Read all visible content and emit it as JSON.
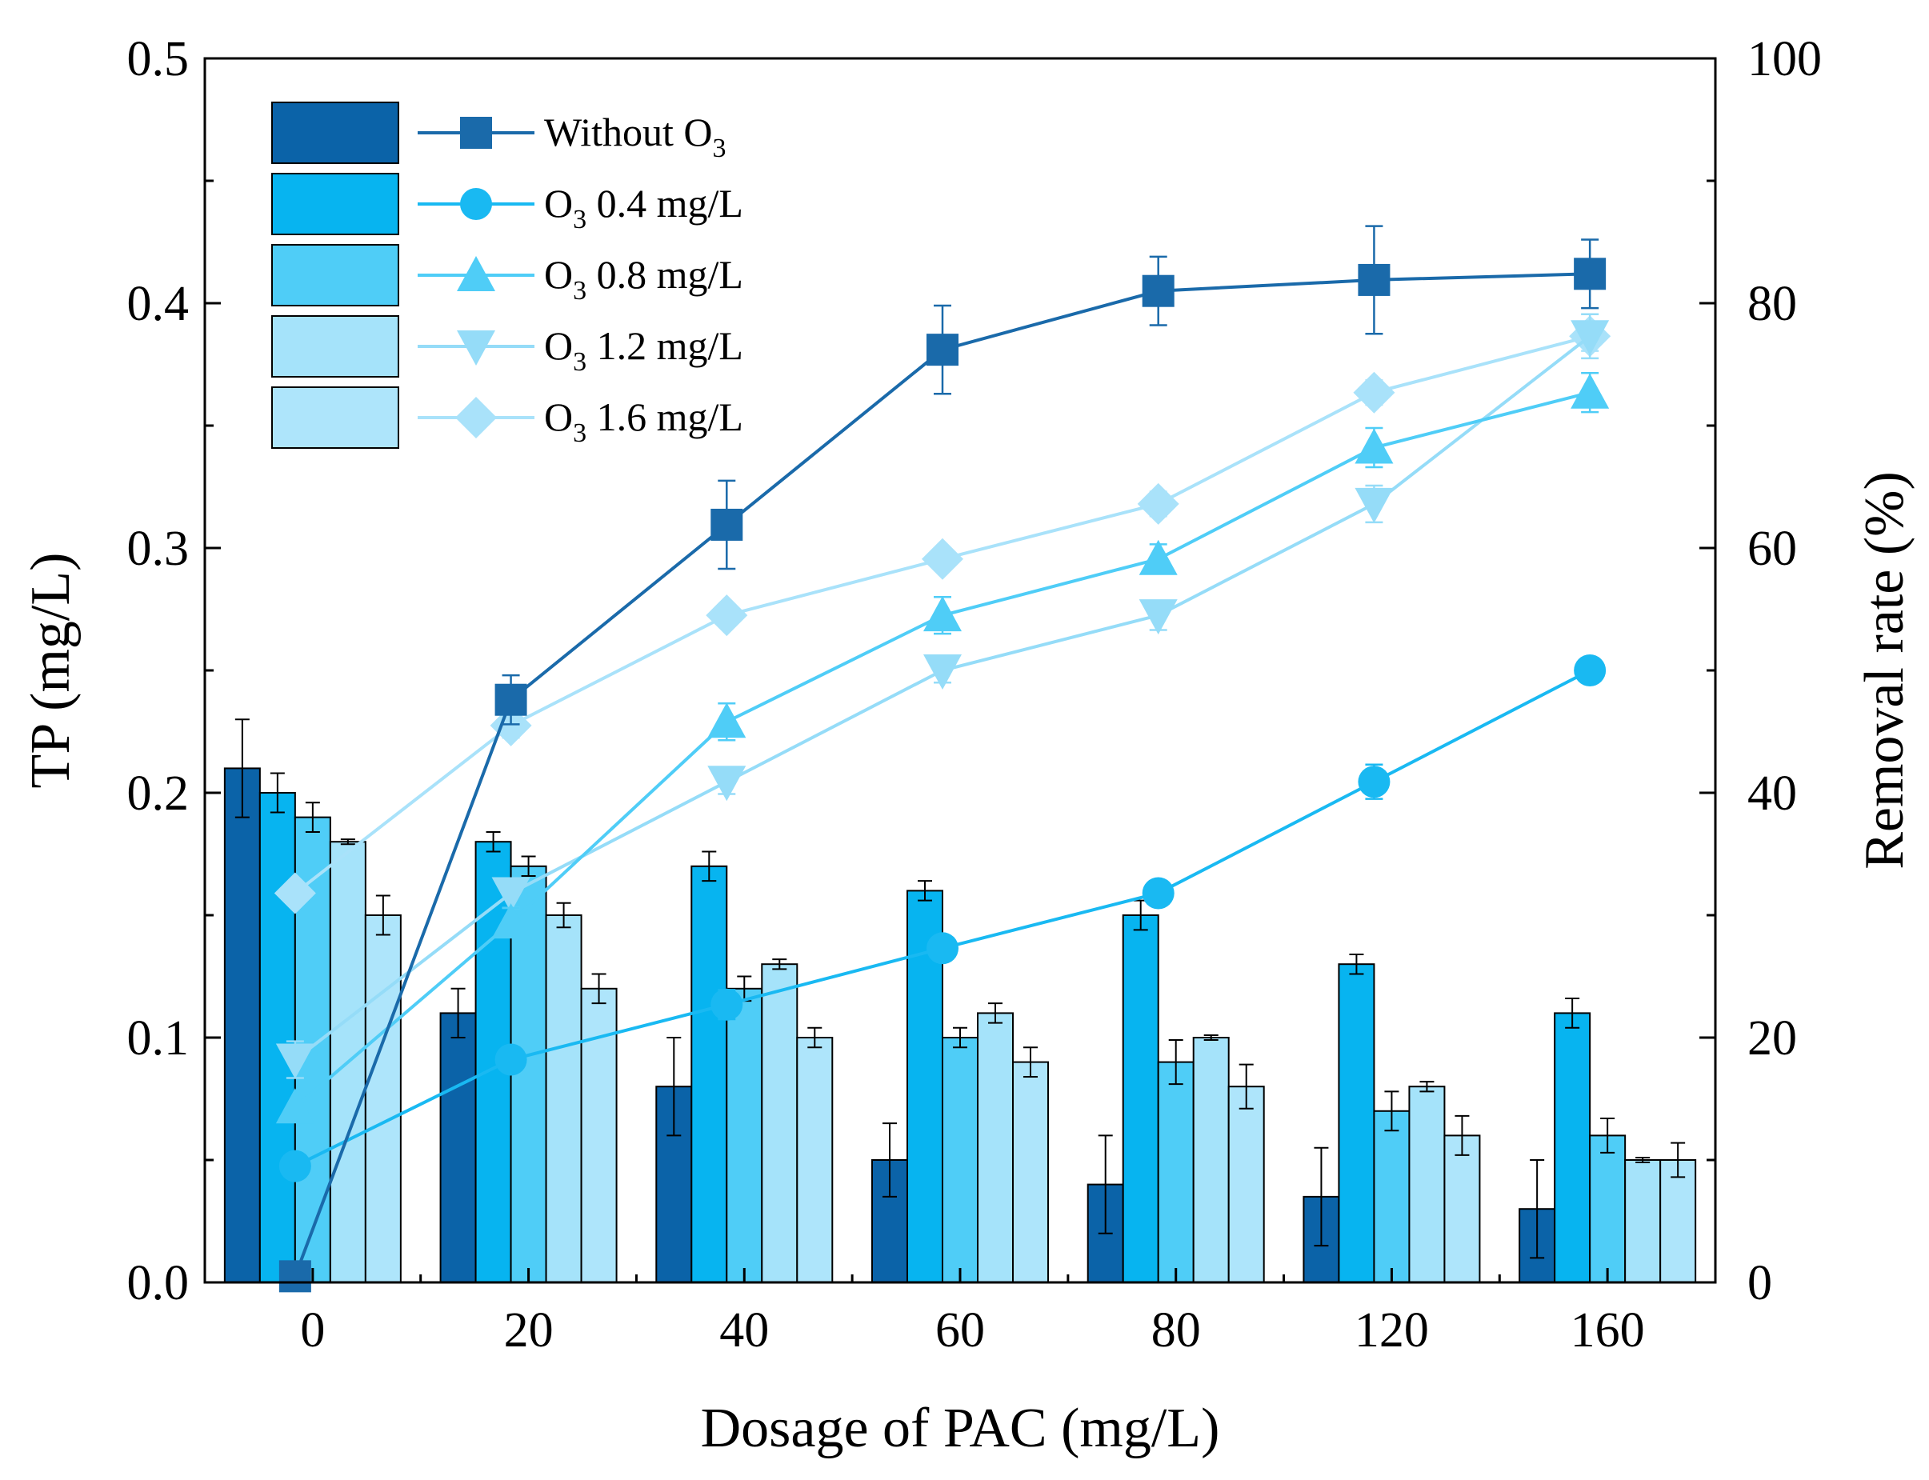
{
  "chart_data": {
    "type": "bar+line",
    "xlabel": "Dosage of PAC (mg/L)",
    "ylabel_left": "TP (mg/L)",
    "ylabel_right": "Removal rate (%)",
    "ylim_left": [
      0.0,
      0.5
    ],
    "ylim_right": [
      0,
      100
    ],
    "yticks_left": [
      "0.0",
      "0.1",
      "0.2",
      "0.3",
      "0.4",
      "0.5"
    ],
    "yticks_right": [
      "0",
      "20",
      "40",
      "60",
      "80",
      "100"
    ],
    "categories": [
      "0",
      "20",
      "40",
      "60",
      "80",
      "120",
      "160"
    ],
    "bar_series": [
      {
        "name": "Without O3",
        "color": "#0b63a8",
        "values": [
          0.21,
          0.11,
          0.08,
          0.05,
          0.04,
          0.035,
          0.03
        ],
        "errors": [
          0.02,
          0.01,
          0.02,
          0.015,
          0.02,
          0.02,
          0.02
        ]
      },
      {
        "name": "O3 0.4 mg/L",
        "color": "#07b4f0",
        "values": [
          0.2,
          0.18,
          0.17,
          0.16,
          0.15,
          0.13,
          0.11
        ],
        "errors": [
          0.008,
          0.004,
          0.006,
          0.004,
          0.006,
          0.004,
          0.006
        ]
      },
      {
        "name": "O3 0.8 mg/L",
        "color": "#4fcdf7",
        "values": [
          0.19,
          0.17,
          0.12,
          0.1,
          0.09,
          0.07,
          0.06
        ],
        "errors": [
          0.006,
          0.004,
          0.005,
          0.004,
          0.009,
          0.008,
          0.007
        ]
      },
      {
        "name": "O3 1.2 mg/L",
        "color": "#a5e3fa",
        "values": [
          0.18,
          0.15,
          0.13,
          0.11,
          0.1,
          0.08,
          0.05
        ],
        "errors": [
          0.001,
          0.005,
          0.002,
          0.004,
          0.001,
          0.002,
          0.001
        ]
      },
      {
        "name": "O3 1.6 mg/L",
        "color": "#aee5fb",
        "values": [
          0.15,
          0.12,
          0.1,
          0.09,
          0.08,
          0.06,
          0.05
        ],
        "errors": [
          0.008,
          0.006,
          0.004,
          0.006,
          0.009,
          0.008,
          0.007
        ]
      }
    ],
    "line_series": [
      {
        "name": "Without O3",
        "marker": "square",
        "color": "#1a6aaa",
        "values": [
          0.5,
          47.6,
          61.9,
          76.2,
          81.0,
          81.9,
          82.4
        ],
        "errors": [
          0,
          2.0,
          3.6,
          3.6,
          2.8,
          4.4,
          2.8
        ]
      },
      {
        "name": "O3 0.4 mg/L",
        "marker": "circle",
        "color": "#19b9f2",
        "values": [
          9.5,
          18.2,
          22.7,
          27.3,
          31.8,
          40.9,
          50.0
        ],
        "errors": [
          0,
          0.8,
          1.2,
          1.0,
          0.8,
          1.4,
          1.0
        ]
      },
      {
        "name": "O3 0.8 mg/L",
        "marker": "triangle-up",
        "color": "#4fcdf7",
        "values": [
          14.3,
          29.4,
          45.8,
          54.5,
          59.1,
          68.2,
          72.7
        ],
        "errors": [
          0,
          1.2,
          1.5,
          1.5,
          1.2,
          1.6,
          1.6
        ]
      },
      {
        "name": "O3 1.2 mg/L",
        "marker": "triangle-down",
        "color": "#95dcf8",
        "values": [
          18.2,
          31.8,
          40.9,
          50.0,
          54.5,
          63.6,
          77.3
        ],
        "errors": [
          1.5,
          1.2,
          1.0,
          1.0,
          1.2,
          1.5,
          1.8
        ]
      },
      {
        "name": "O3 1.6 mg/L",
        "marker": "diamond",
        "color": "#a9e2fa",
        "values": [
          31.8,
          45.5,
          54.5,
          59.1,
          63.6,
          72.7,
          77.3
        ],
        "errors": [
          0.8,
          1.0,
          0.8,
          0.8,
          1.0,
          1.0,
          1.2
        ]
      }
    ],
    "legend": [
      {
        "main": "Without O",
        "sub": "3",
        "tail": ""
      },
      {
        "main": "O",
        "sub": "3",
        "tail": " 0.4 mg/L"
      },
      {
        "main": "O",
        "sub": "3",
        "tail": " 0.8 mg/L"
      },
      {
        "main": "O",
        "sub": "3",
        "tail": " 1.2 mg/L"
      },
      {
        "main": "O",
        "sub": "3",
        "tail": " 1.6 mg/L"
      }
    ],
    "legend_position": "top-left"
  }
}
